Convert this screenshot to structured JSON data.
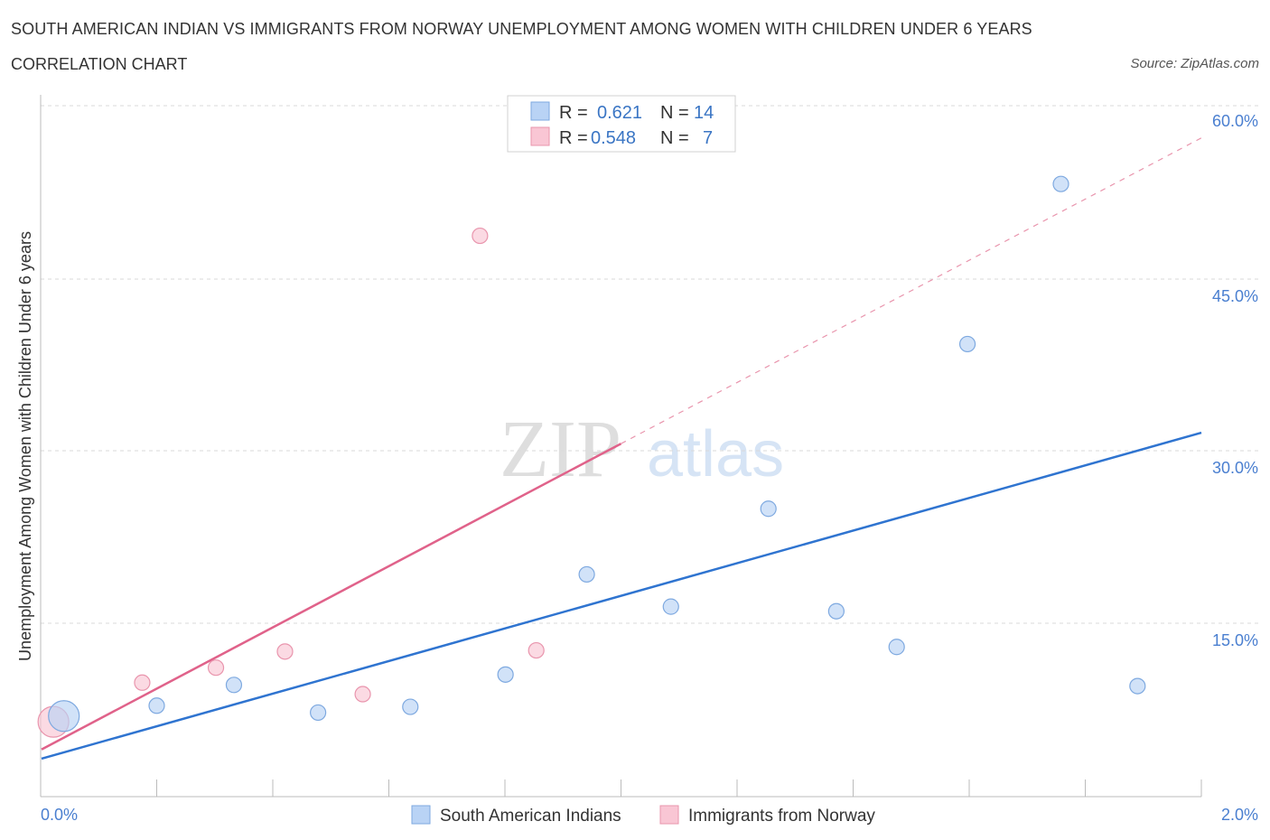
{
  "header": {
    "title": "SOUTH AMERICAN INDIAN VS IMMIGRANTS FROM NORWAY UNEMPLOYMENT AMONG WOMEN WITH CHILDREN UNDER 6 YEARS",
    "subtitle": "CORRELATION CHART",
    "source": "Source: ZipAtlas.com"
  },
  "watermark": {
    "zip": "ZIP",
    "atlas": "atlas"
  },
  "colors": {
    "blue_fill": "#b9d3f5",
    "blue_stroke": "#7ea9e0",
    "blue_line": "#2f74d0",
    "pink_fill": "#f9c6d4",
    "pink_stroke": "#e995ad",
    "pink_line": "#e0628a",
    "grid": "#d9d9d9",
    "tick_text": "#4a7fd0"
  },
  "legend_top": {
    "rows": [
      {
        "r_label": "R =",
        "r_value": "0.621",
        "n_label": "N =",
        "n_value": "14"
      },
      {
        "r_label": "R =",
        "r_value": "0.548",
        "n_label": "N =",
        "n_value": "7"
      }
    ]
  },
  "legend_bottom": {
    "items": [
      "South American Indians",
      "Immigrants from Norway"
    ]
  },
  "chart_data": {
    "type": "scatter",
    "title": "SOUTH AMERICAN INDIAN VS IMMIGRANTS FROM NORWAY UNEMPLOYMENT AMONG WOMEN WITH CHILDREN UNDER 6 YEARS",
    "subtitle": "CORRELATION CHART",
    "xlabel": "",
    "ylabel": "Unemployment Among Women with Children Under 6 years",
    "xlim": [
      0,
      2.0
    ],
    "ylim": [
      0,
      60
    ],
    "x_tick_labels": [
      "0.0%",
      "2.0%"
    ],
    "y_ticks": [
      15,
      30,
      45,
      60
    ],
    "y_tick_labels": [
      "15.0%",
      "30.0%",
      "45.0%",
      "60.0%"
    ],
    "grid": true,
    "legend_position": "top-center",
    "series": [
      {
        "name": "South American Indians",
        "R": 0.621,
        "N": 14,
        "points": [
          {
            "x": 0.04,
            "y": 7.0,
            "size": "large"
          },
          {
            "x": 0.2,
            "y": 7.9
          },
          {
            "x": 0.333,
            "y": 9.7
          },
          {
            "x": 0.478,
            "y": 7.3
          },
          {
            "x": 0.637,
            "y": 7.8
          },
          {
            "x": 0.801,
            "y": 10.6
          },
          {
            "x": 0.941,
            "y": 19.3
          },
          {
            "x": 1.086,
            "y": 16.5
          },
          {
            "x": 1.254,
            "y": 25.0
          },
          {
            "x": 1.371,
            "y": 16.1
          },
          {
            "x": 1.475,
            "y": 13.0
          },
          {
            "x": 1.597,
            "y": 39.3
          },
          {
            "x": 1.758,
            "y": 53.2
          },
          {
            "x": 1.89,
            "y": 9.6
          }
        ],
        "trend": {
          "x": [
            0.0,
            2.0
          ],
          "y": [
            3.3,
            31.6
          ]
        }
      },
      {
        "name": "Immigrants from Norway",
        "R": 0.548,
        "N": 7,
        "points": [
          {
            "x": 0.022,
            "y": 6.5,
            "size": "large"
          },
          {
            "x": 0.175,
            "y": 9.9
          },
          {
            "x": 0.302,
            "y": 11.2
          },
          {
            "x": 0.421,
            "y": 12.6
          },
          {
            "x": 0.555,
            "y": 8.9
          },
          {
            "x": 0.757,
            "y": 48.7
          },
          {
            "x": 0.854,
            "y": 12.7
          }
        ],
        "trend": {
          "x": [
            0.0,
            2.0
          ],
          "y": [
            4.1,
            57.2
          ],
          "solid_until_x": 1.0
        }
      }
    ]
  }
}
